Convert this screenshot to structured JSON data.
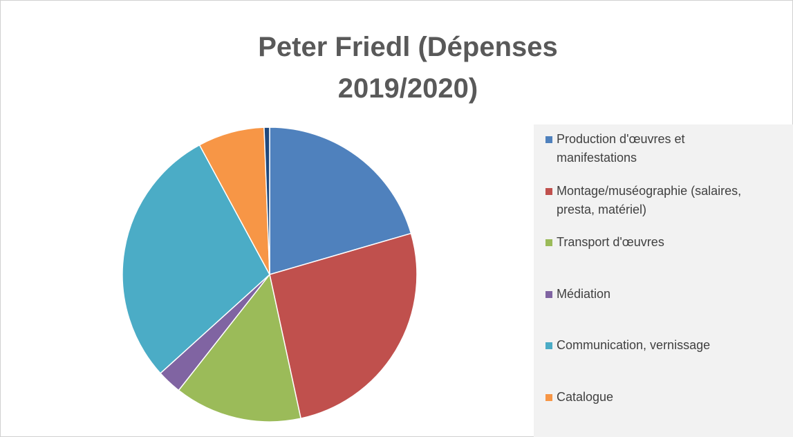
{
  "chart_data": {
    "type": "pie",
    "title": "Peter Friedl (Dépenses 2019/2020)",
    "categories": [
      "Production d'œuvres et manifestations",
      "Montage/muséographie (salaires, presta, matériel)",
      "Transport d'œuvres",
      "Médiation",
      "Communication, vernissage",
      "Catalogue",
      null
    ],
    "values": [
      20.5,
      26.1,
      14.0,
      2.7,
      28.8,
      7.3,
      0.6
    ],
    "colors": [
      "#4f81bd",
      "#c0504d",
      "#9bbb59",
      "#8064a2",
      "#4bacc6",
      "#f79646",
      "#1f497d"
    ]
  }
}
